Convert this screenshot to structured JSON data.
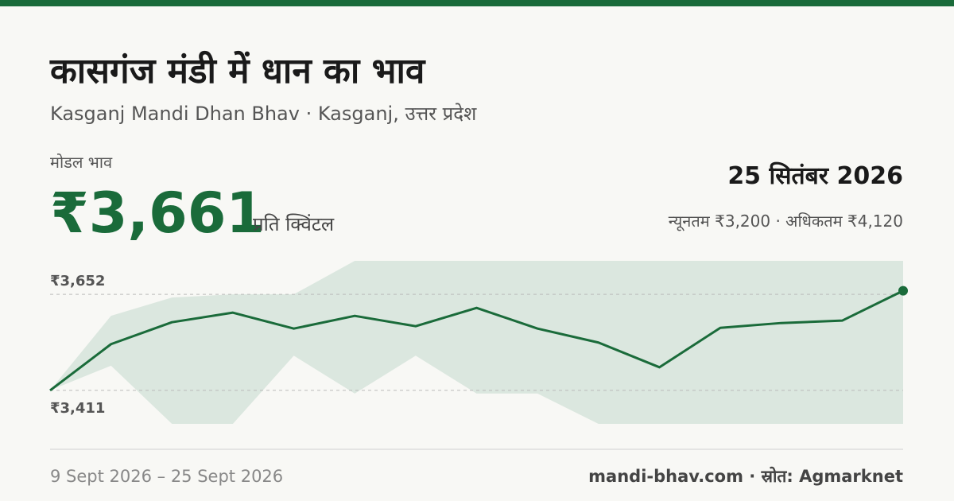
{
  "title": "कासगंज मंडी में धान का भाव",
  "subtitle": "Kasganj Mandi Dhan Bhav · Kasganj, उत्तर प्रदेश",
  "price_label": "मोडल भाव",
  "price": "₹3,661",
  "price_unit": "प्रति क्विंटल",
  "date": "25 सितंबर 2026",
  "min_max": "न्यूनतम ₹3,200 · अधिकतम ₹4,120",
  "date_range": "9 Sept 2026 – 25 Sept 2026",
  "source": "mandi-bhav.com · स्रोत: Agmarknet",
  "chart_data": {
    "type": "line",
    "values": [
      3411,
      3527,
      3582,
      3606,
      3566,
      3598,
      3572,
      3618,
      3566,
      3531,
      3469,
      3568,
      3580,
      3586,
      3661
    ],
    "color": "#1a6b3a",
    "range_low": [
      3411,
      3473,
      3327,
      3327,
      3498,
      3403,
      3498,
      3403,
      3403,
      3327,
      3327,
      3327,
      3327,
      3327,
      3327
    ],
    "range_high": [
      3411,
      3598,
      3644,
      3652,
      3652,
      3736,
      3736,
      3736,
      3736,
      3736,
      3736,
      3736,
      3736,
      3736,
      3736
    ],
    "range_color": "#dbe7df",
    "ylim": [
      3327,
      3736
    ],
    "yticks": [
      {
        "value": 3411,
        "label": "₹3,411"
      },
      {
        "value": 3652,
        "label": "₹3,652"
      }
    ],
    "grid": true
  }
}
